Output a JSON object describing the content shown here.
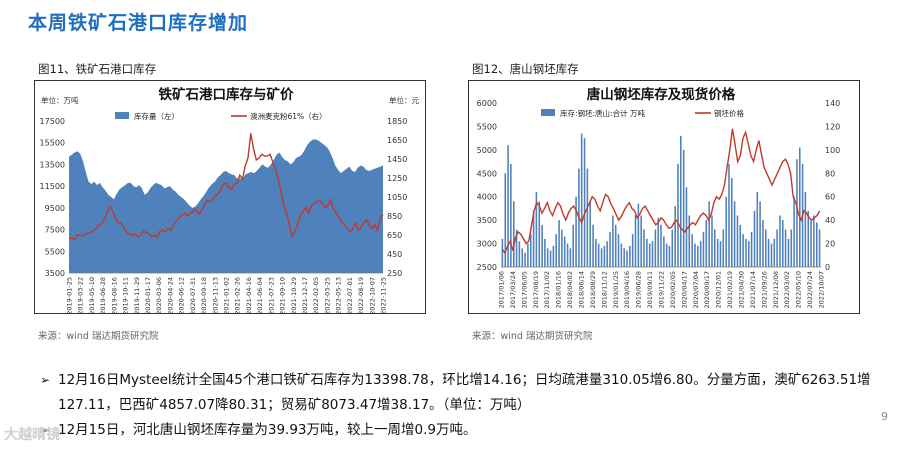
{
  "page": {
    "title": "本周铁矿石港口库存增加",
    "page_number": "9",
    "watermark": "大越晴镜"
  },
  "figures": [
    {
      "caption": "图11、铁矿石港口库存",
      "source": "来源：wind   瑞达期货研究院"
    },
    {
      "caption": "图12、唐山钢坯库存",
      "source": "来源：wind   瑞达期货研究院"
    }
  ],
  "bullets": [
    {
      "marker": "➢",
      "text": "12月16日Mysteel统计全国45个港口铁矿石库存为13398.78，环比增14.16；日均疏港量310.05增6.80。分量方面，澳矿6263.51增127.11，巴西矿4857.07降80.31；贸易矿8073.47增38.17。（单位：万吨）"
    },
    {
      "marker": "➢",
      "text": "12月15日，河北唐山钢坯库存量为39.93万吨，较上一周增0.9万吨。"
    }
  ],
  "chart_data": [
    {
      "type": "area",
      "title": "铁矿石港口库存与矿价",
      "left_unit": "单位：万吨",
      "right_unit": "单位：元",
      "ylim_left": [
        3500,
        17500
      ],
      "yticks_left": [
        3500,
        5500,
        7500,
        9500,
        11500,
        13500,
        15500,
        17500
      ],
      "ylim_right": [
        250,
        1850
      ],
      "yticks_right": [
        250,
        450,
        650,
        850,
        1050,
        1250,
        1450,
        1650,
        1850
      ],
      "x_labels": [
        "2019-01-25",
        "2019-03-22",
        "2019-05-10",
        "2019-06-28",
        "2019-08-16",
        "2019-10-11",
        "2019-11-29",
        "2020-01-17",
        "2020-03-06",
        "2020-04-24",
        "2020-06-12",
        "2020-07-31",
        "2020-09-18",
        "2020-11-13",
        "2021-01-02",
        "2021-02-26",
        "2021-04-16",
        "2021-06-04",
        "2021-07-23",
        "2021-09-10",
        "2021-10-29",
        "2021-12-17",
        "2022-02-05",
        "2022-03-25",
        "2022-05-13",
        "2022-07-01",
        "2022-08-19",
        "2022-10-07",
        "2022-11-25"
      ],
      "series": [
        {
          "name": "库存量（左）",
          "axis": "left",
          "kind": "area",
          "color": "#4f81bd",
          "values": [
            14200,
            14400,
            14600,
            14700,
            14500,
            13800,
            12800,
            11900,
            11700,
            11900,
            11600,
            11800,
            11400,
            11100,
            10700,
            10500,
            10300,
            10800,
            11200,
            11400,
            11600,
            11800,
            11800,
            11500,
            11400,
            11600,
            11300,
            10700,
            10900,
            11300,
            11600,
            11800,
            11700,
            11600,
            11300,
            11400,
            11500,
            11200,
            11000,
            10700,
            10500,
            10300,
            10000,
            9700,
            9500,
            9600,
            9900,
            10300,
            10600,
            11000,
            11400,
            11700,
            11900,
            12300,
            12500,
            12800,
            12900,
            12700,
            12600,
            12500,
            12200,
            12200,
            12200,
            12600,
            12700,
            12800,
            12700,
            12900,
            13200,
            13500,
            13300,
            13200,
            13500,
            13900,
            14400,
            14600,
            14200,
            13900,
            13800,
            13500,
            13700,
            14100,
            14200,
            14400,
            14800,
            15300,
            15600,
            15800,
            15800,
            15700,
            15500,
            15300,
            15100,
            14700,
            14100,
            13400,
            13000,
            12700,
            12900,
            13100,
            13300,
            12900,
            12800,
            13200,
            13400,
            13300,
            13000,
            12900,
            13000,
            13100,
            13200,
            13300,
            13400
          ]
        },
        {
          "name": "澳洲麦克粉61%（右）",
          "axis": "right",
          "kind": "line",
          "color": "#c0392b",
          "values": [
            610,
            620,
            600,
            650,
            650,
            640,
            660,
            670,
            680,
            700,
            720,
            760,
            770,
            820,
            900,
            950,
            890,
            820,
            780,
            770,
            720,
            680,
            660,
            650,
            660,
            630,
            650,
            690,
            680,
            660,
            630,
            650,
            620,
            690,
            700,
            680,
            720,
            700,
            760,
            800,
            830,
            860,
            880,
            850,
            880,
            900,
            920,
            870,
            900,
            960,
            1010,
            1000,
            1020,
            1060,
            1080,
            1120,
            1180,
            1200,
            1150,
            1130,
            1180,
            1200,
            1280,
            1240,
            1380,
            1460,
            1720,
            1560,
            1440,
            1460,
            1500,
            1480,
            1480,
            1500,
            1420,
            1340,
            1240,
            1100,
            960,
            880,
            760,
            640,
            690,
            760,
            860,
            900,
            940,
            880,
            960,
            980,
            1000,
            1020,
            980,
            940,
            960,
            1020,
            920,
            880,
            840,
            780,
            760,
            720,
            690,
            710,
            780,
            700,
            730,
            780,
            810,
            760,
            720,
            760,
            700,
            830,
            860
          ]
        }
      ]
    },
    {
      "type": "bar",
      "title": "唐山钢坯库存及现货价格",
      "left_unit": "",
      "right_unit": "",
      "ylim_left": [
        2500,
        6000
      ],
      "yticks_left": [
        2500,
        3000,
        3500,
        4000,
        4500,
        5000,
        5500,
        6000
      ],
      "ylim_right": [
        0,
        140
      ],
      "yticks_right": [
        0,
        20,
        40,
        60,
        80,
        100,
        120,
        140
      ],
      "x_labels": [
        "2017/01/06",
        "2017/03/24",
        "2017/06/05",
        "2017/08/19",
        "2017/11/02",
        "2018/01/16",
        "2018/04/02",
        "2018/06/14",
        "2018/08/29",
        "2018/11/12",
        "2019/01/25",
        "2019/04/16",
        "2019/06/28",
        "2019/09/11",
        "2019/11/22",
        "2020/02/05",
        "2020/04/17",
        "2020/07/04",
        "2020/09/17",
        "2020/12/01",
        "2021/02/19",
        "2021/04/30",
        "2021/07/14",
        "2021/09/26",
        "2021/12/08",
        "2022/03/02",
        "2022/05/10",
        "2022/07/24",
        "2022/10/07"
      ],
      "series": [
        {
          "name": "库存:钢坯:唐山:合计  万吨",
          "axis": "left",
          "kind": "bar",
          "color": "#4f81bd",
          "values": [
            3100,
            4500,
            5100,
            4700,
            3900,
            3300,
            3050,
            2900,
            2800,
            3000,
            3200,
            3700,
            4100,
            3900,
            3400,
            3100,
            2900,
            2850,
            2950,
            3200,
            3500,
            3300,
            3150,
            3000,
            2900,
            3400,
            4000,
            4600,
            5350,
            5250,
            4600,
            3900,
            3400,
            3100,
            3000,
            2900,
            2950,
            3050,
            3250,
            3600,
            3400,
            3200,
            3000,
            2900,
            2850,
            2950,
            3200,
            3600,
            3850,
            3600,
            3300,
            3100,
            3000,
            3050,
            3300,
            3550,
            3400,
            3150,
            3000,
            2950,
            3300,
            3800,
            4700,
            5300,
            5000,
            4200,
            3600,
            3200,
            3000,
            2950,
            3050,
            3250,
            3500,
            3900,
            3600,
            3300,
            3100,
            3050,
            3300,
            4000,
            4700,
            4400,
            3900,
            3600,
            3400,
            3200,
            3100,
            3050,
            3250,
            3700,
            4100,
            3900,
            3500,
            3300,
            3100,
            3000,
            3100,
            3300,
            3600,
            3500,
            3300,
            3100,
            3300,
            4000,
            4800,
            5050,
            4700,
            4100,
            3700,
            3500,
            3600,
            3450,
            3300
          ]
        },
        {
          "name": "钢坯价格",
          "axis": "right",
          "kind": "line",
          "color": "#c0392b",
          "values": [
            15,
            12,
            18,
            22,
            14,
            25,
            30,
            28,
            24,
            20,
            22,
            35,
            48,
            55,
            52,
            46,
            50,
            55,
            48,
            44,
            50,
            55,
            52,
            45,
            40,
            46,
            50,
            52,
            48,
            42,
            38,
            45,
            50,
            55,
            60,
            58,
            52,
            48,
            55,
            62,
            60,
            54,
            50,
            45,
            40,
            43,
            48,
            52,
            55,
            50,
            48,
            42,
            45,
            50,
            52,
            48,
            44,
            40,
            36,
            38,
            42,
            40,
            36,
            33,
            34,
            38,
            40,
            35,
            32,
            30,
            33,
            36,
            38,
            36,
            40,
            44,
            46,
            44,
            40,
            45,
            55,
            60,
            58,
            62,
            70,
            85,
            100,
            118,
            105,
            90,
            95,
            110,
            115,
            105,
            95,
            90,
            100,
            108,
            96,
            85,
            80,
            75,
            70,
            75,
            80,
            85,
            90,
            92,
            88,
            80,
            60,
            55,
            45,
            40,
            48,
            46,
            42,
            40,
            42,
            44,
            48
          ]
        }
      ]
    }
  ]
}
